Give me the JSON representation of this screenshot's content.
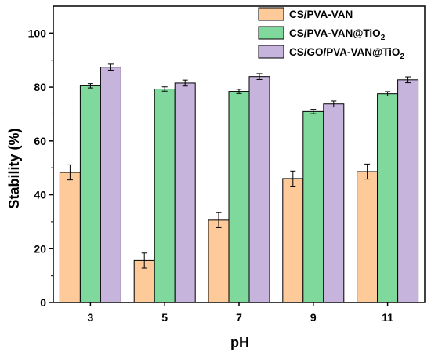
{
  "chart_data": {
    "type": "bar",
    "xlabel": "pH",
    "ylabel": "Stability (%)",
    "categories": [
      "3",
      "5",
      "7",
      "9",
      "11"
    ],
    "ylim": [
      0,
      110
    ],
    "yticks": [
      0,
      20,
      40,
      60,
      80,
      100
    ],
    "legend_position": "top-right",
    "grid": false,
    "series": [
      {
        "name": "CS/PVA-VAN",
        "name_base": "CS/PVA-VAN",
        "name_sub": "",
        "color": "#FFCA99",
        "values": [
          48.3,
          15.6,
          30.6,
          46.0,
          48.6
        ],
        "errors": [
          2.8,
          2.8,
          2.8,
          2.8,
          2.8
        ]
      },
      {
        "name": "CS/PVA-VAN@TiO2",
        "name_base": "CS/PVA-VAN@TiO",
        "name_sub": "2",
        "color": "#7FD99C",
        "values": [
          80.5,
          79.3,
          78.4,
          70.9,
          77.5
        ],
        "errors": [
          0.8,
          0.8,
          0.8,
          0.8,
          0.8
        ]
      },
      {
        "name": "CS/GO/PVA-VAN@TiO2",
        "name_base": "CS/GO/PVA-VAN@TiO",
        "name_sub": "2",
        "color": "#C7B4DC",
        "values": [
          87.4,
          81.5,
          83.9,
          73.7,
          82.7
        ],
        "errors": [
          1.1,
          1.1,
          1.1,
          1.1,
          1.1
        ]
      }
    ]
  }
}
